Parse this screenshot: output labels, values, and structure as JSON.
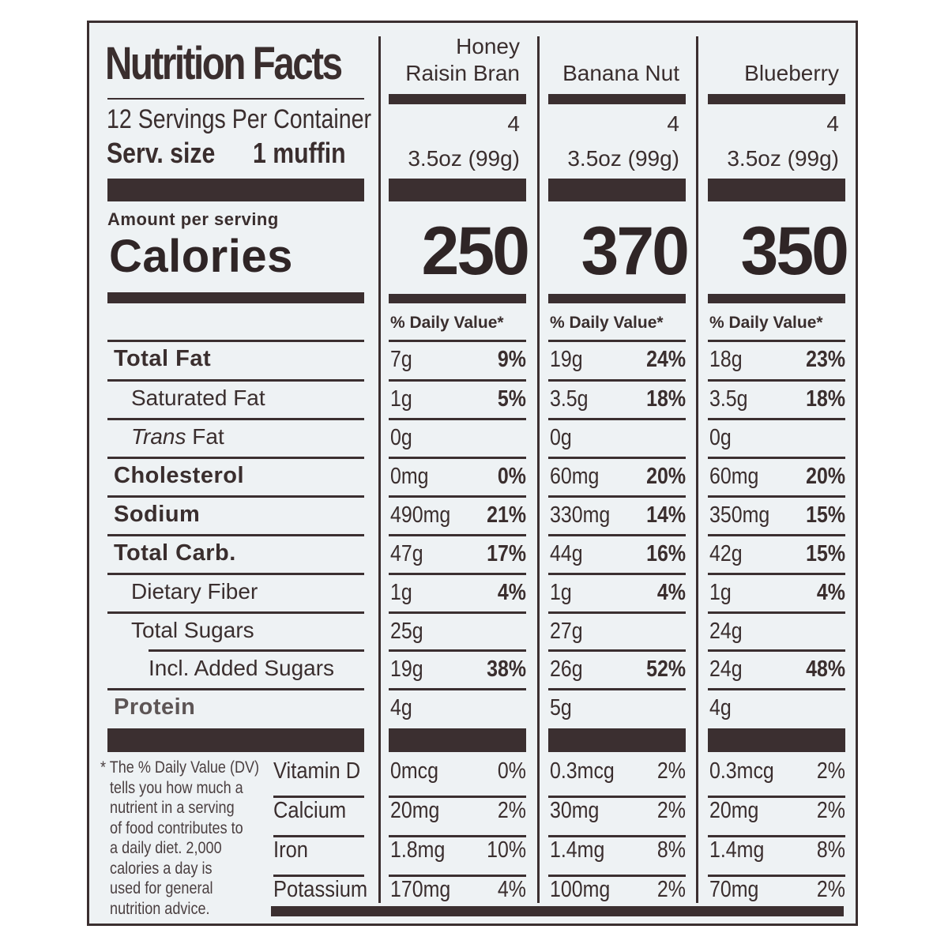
{
  "label": {
    "title": "Nutrition Facts",
    "servings_per_container": "12 Servings Per Container",
    "serving_size_label": "Serv. size",
    "serving_size_value": "1 muffin",
    "amount_per_serving": "Amount per serving",
    "calories_label": "Calories",
    "daily_value_header": "% Daily Value*",
    "products": [
      {
        "name_line1": "Honey",
        "name_line2": "Raisin Bran",
        "servings": "4",
        "serving_size": "3.5oz (99g)",
        "calories": "250"
      },
      {
        "name_line1": "",
        "name_line2": "Banana Nut",
        "servings": "4",
        "serving_size": "3.5oz (99g)",
        "calories": "370"
      },
      {
        "name_line1": "",
        "name_line2": "Blueberry",
        "servings": "4",
        "serving_size": "3.5oz (99g)",
        "calories": "350"
      }
    ],
    "nutrients": [
      {
        "name": "Total Fat",
        "values": [
          {
            "amount": "7g",
            "dv": "9%"
          },
          {
            "amount": "19g",
            "dv": "24%"
          },
          {
            "amount": "18g",
            "dv": "23%"
          }
        ]
      },
      {
        "name": "Saturated Fat",
        "values": [
          {
            "amount": "1g",
            "dv": "5%"
          },
          {
            "amount": "3.5g",
            "dv": "18%"
          },
          {
            "amount": "3.5g",
            "dv": "18%"
          }
        ]
      },
      {
        "name_italic": "Trans",
        "name": " Fat",
        "values": [
          {
            "amount": "0g",
            "dv": ""
          },
          {
            "amount": "0g",
            "dv": ""
          },
          {
            "amount": "0g",
            "dv": ""
          }
        ]
      },
      {
        "name": "Cholesterol",
        "values": [
          {
            "amount": "0mg",
            "dv": "0%"
          },
          {
            "amount": "60mg",
            "dv": "20%"
          },
          {
            "amount": "60mg",
            "dv": "20%"
          }
        ]
      },
      {
        "name": "Sodium",
        "values": [
          {
            "amount": "490mg",
            "dv": "21%"
          },
          {
            "amount": "330mg",
            "dv": "14%"
          },
          {
            "amount": "350mg",
            "dv": "15%"
          }
        ]
      },
      {
        "name": "Total Carb.",
        "values": [
          {
            "amount": "47g",
            "dv": "17%"
          },
          {
            "amount": "44g",
            "dv": "16%"
          },
          {
            "amount": "42g",
            "dv": "15%"
          }
        ]
      },
      {
        "name": "Dietary Fiber",
        "values": [
          {
            "amount": "1g",
            "dv": "4%"
          },
          {
            "amount": "1g",
            "dv": "4%"
          },
          {
            "amount": "1g",
            "dv": "4%"
          }
        ]
      },
      {
        "name": "Total Sugars",
        "values": [
          {
            "amount": "25g",
            "dv": ""
          },
          {
            "amount": "27g",
            "dv": ""
          },
          {
            "amount": "24g",
            "dv": ""
          }
        ]
      },
      {
        "name": "Incl. Added Sugars",
        "values": [
          {
            "amount": "19g",
            "dv": "38%"
          },
          {
            "amount": "26g",
            "dv": "52%"
          },
          {
            "amount": "24g",
            "dv": "48%"
          }
        ]
      },
      {
        "name": "Protein",
        "values": [
          {
            "amount": "4g",
            "dv": ""
          },
          {
            "amount": "5g",
            "dv": ""
          },
          {
            "amount": "4g",
            "dv": ""
          }
        ]
      }
    ],
    "vitamins": [
      {
        "name": "Vitamin D",
        "values": [
          {
            "amount": "0mcg",
            "dv": "0%"
          },
          {
            "amount": "0.3mcg",
            "dv": "2%"
          },
          {
            "amount": "0.3mcg",
            "dv": "2%"
          }
        ]
      },
      {
        "name": "Calcium",
        "values": [
          {
            "amount": "20mg",
            "dv": "2%"
          },
          {
            "amount": "30mg",
            "dv": "2%"
          },
          {
            "amount": "20mg",
            "dv": "2%"
          }
        ]
      },
      {
        "name": "Iron",
        "values": [
          {
            "amount": "1.8mg",
            "dv": "10%"
          },
          {
            "amount": "1.4mg",
            "dv": "8%"
          },
          {
            "amount": "1.4mg",
            "dv": "8%"
          }
        ]
      },
      {
        "name": "Potassium",
        "values": [
          {
            "amount": "170mg",
            "dv": "4%"
          },
          {
            "amount": "100mg",
            "dv": "2%"
          },
          {
            "amount": "70mg",
            "dv": "2%"
          }
        ]
      }
    ],
    "footnote_lines": [
      "* The % Daily Value (DV)",
      "tells you how much a",
      "nutrient in a serving",
      "of food contributes to",
      "a daily diet. 2,000",
      "calories a day is",
      "used for general",
      "nutrition advice."
    ]
  }
}
